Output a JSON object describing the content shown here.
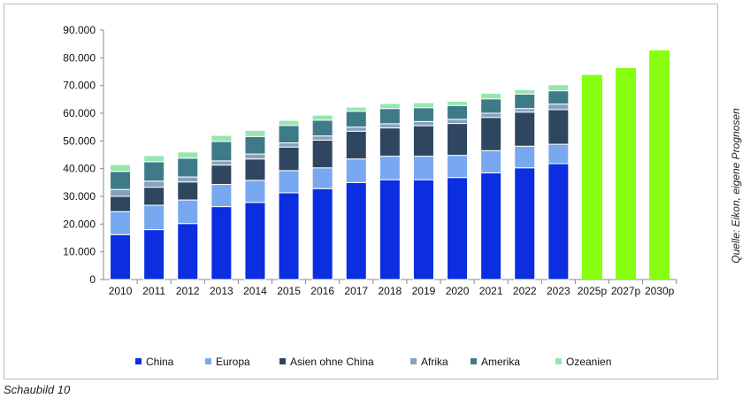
{
  "chart_data": {
    "type": "bar",
    "stacked": true,
    "categories": [
      "2010",
      "2011",
      "2012",
      "2013",
      "2014",
      "2015",
      "2016",
      "2017",
      "2018",
      "2019",
      "2020",
      "2021",
      "2022",
      "2023",
      "2025p",
      "2027p",
      "2030p"
    ],
    "series": [
      {
        "name": "China",
        "color": "#0a2ee0",
        "values": [
          16200,
          18000,
          20200,
          26300,
          27800,
          31300,
          32800,
          35000,
          36000,
          36000,
          36800,
          38500,
          40300,
          41800,
          null,
          null,
          null
        ]
      },
      {
        "name": "Europa",
        "color": "#78a8f0",
        "values": [
          8300,
          8800,
          8500,
          8000,
          8000,
          8000,
          7500,
          8500,
          8500,
          8500,
          8000,
          8000,
          7800,
          7000,
          null,
          null,
          null
        ]
      },
      {
        "name": "Asien ohne China",
        "color": "#2f4660",
        "values": [
          5500,
          6500,
          6500,
          7000,
          7700,
          8500,
          10000,
          10000,
          10200,
          11000,
          11500,
          12000,
          12300,
          12500,
          null,
          null,
          null
        ]
      },
      {
        "name": "Afrika",
        "color": "#87a2bd",
        "values": [
          2500,
          2200,
          1800,
          1500,
          1800,
          1500,
          1500,
          1500,
          1500,
          1500,
          1500,
          1500,
          1300,
          2000,
          null,
          null,
          null
        ]
      },
      {
        "name": "Amerika",
        "color": "#3f7a88",
        "values": [
          6500,
          7000,
          6800,
          7000,
          6300,
          6300,
          5700,
          5700,
          5500,
          5000,
          5000,
          5200,
          5200,
          4800,
          null,
          null,
          null
        ]
      },
      {
        "name": "Ozeanien",
        "color": "#96e6b0",
        "values": [
          2500,
          2200,
          2200,
          2200,
          2200,
          1800,
          1800,
          1500,
          1800,
          1800,
          1500,
          2000,
          1600,
          2200,
          null,
          null,
          null
        ]
      }
    ],
    "forecast": {
      "color": "#88ff10",
      "values": [
        null,
        null,
        null,
        null,
        null,
        null,
        null,
        null,
        null,
        null,
        null,
        null,
        null,
        null,
        73800,
        76300,
        82700
      ]
    },
    "yticks": [
      "0",
      "10.000",
      "20.000",
      "30.000",
      "40.000",
      "50.000",
      "60.000",
      "70.000",
      "80.000",
      "90.000"
    ],
    "ylim": [
      0,
      90000
    ],
    "grid": false,
    "legend": "bottom"
  },
  "source": "Quelle: Eikon, eigene Prognosen",
  "caption": "Schaubild 10"
}
